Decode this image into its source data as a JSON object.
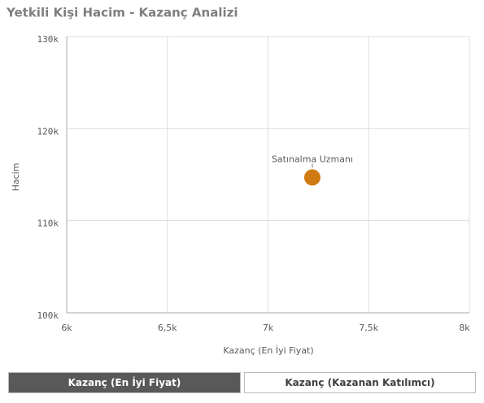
{
  "chart_data": {
    "type": "scatter",
    "title": "Yetkili Kişi Hacim - Kazanç Analizi",
    "x_label": "Kazanç (En İyi Fiyat)",
    "y_label": "Hacim",
    "x": [
      7220
    ],
    "values": [
      114700
    ],
    "point_labels": [
      "Satınalma Uzmanı"
    ],
    "color": "#d07a14",
    "xlim": [
      6000,
      8000
    ],
    "xticks": [
      {
        "value": 6000,
        "label": "6k"
      },
      {
        "value": 6500,
        "label": "6,5k"
      },
      {
        "value": 7000,
        "label": "7k"
      },
      {
        "value": 7500,
        "label": "7,5k"
      },
      {
        "value": 8000,
        "label": "8k"
      }
    ],
    "ylim": [
      100000,
      130000
    ],
    "yticks": [
      {
        "value": 100000,
        "label": "100k"
      },
      {
        "value": 110000,
        "label": "110k"
      },
      {
        "value": 120000,
        "label": "120k"
      },
      {
        "value": 130000,
        "label": "130k"
      }
    ],
    "grid": true
  },
  "controls": {
    "buttons": [
      {
        "label": "Kazanç (En İyi Fiyat)",
        "selected": true
      },
      {
        "label": "Kazanç (Kazanan Katılımcı)",
        "selected": false
      }
    ]
  }
}
